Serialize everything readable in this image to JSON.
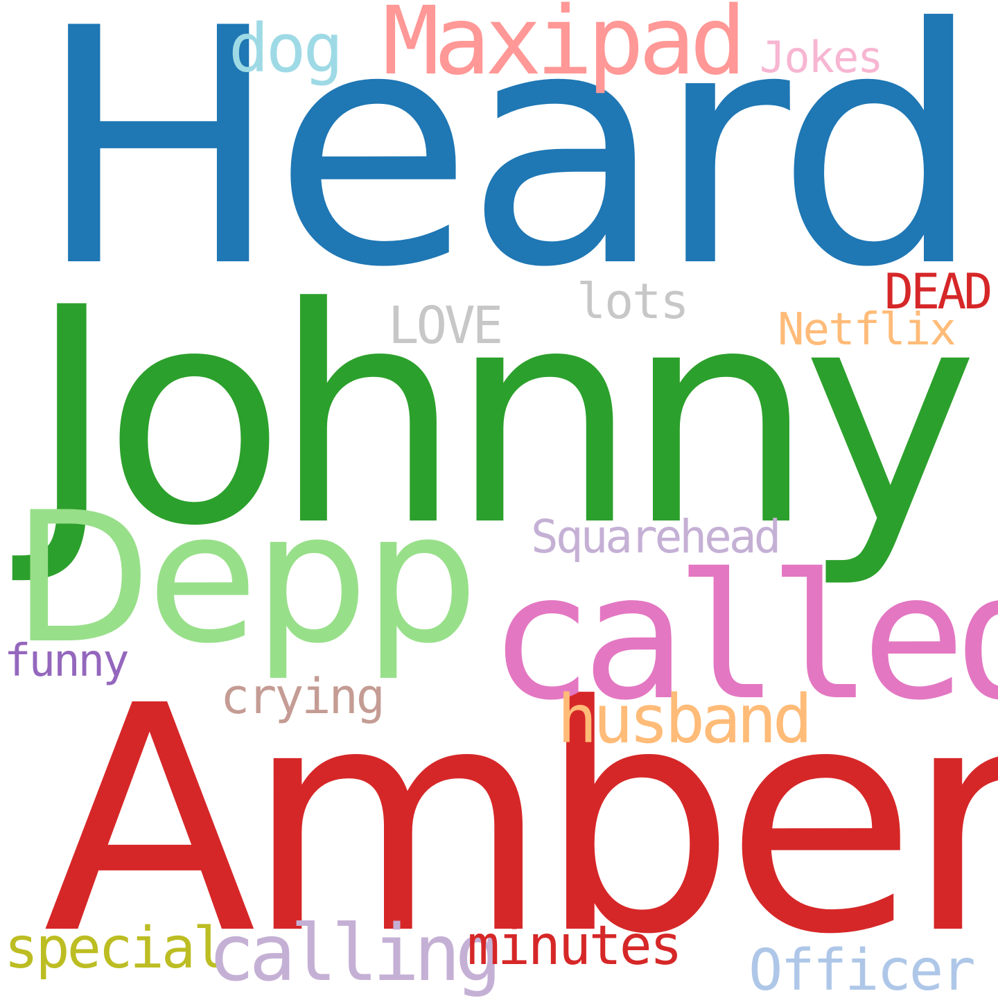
{
  "words": {
    "heard": {
      "text": "Heard",
      "color": "#1f77b4"
    },
    "johnny": {
      "text": "Johnny",
      "color": "#2ca02c"
    },
    "amber": {
      "text": "Amber",
      "color": "#d62728"
    },
    "depp": {
      "text": "Depp",
      "color": "#98df8a"
    },
    "called": {
      "text": "called",
      "color": "#e377c2"
    },
    "maxipad": {
      "text": "Maxipad",
      "color": "#ff9896"
    },
    "dog": {
      "text": "dog",
      "color": "#9edae5"
    },
    "jokes": {
      "text": "Jokes",
      "color": "#f7b6d2"
    },
    "lots": {
      "text": "lots",
      "color": "#c7c7c7"
    },
    "love": {
      "text": "LOVE",
      "color": "#c7c7c7"
    },
    "dead": {
      "text": "DEAD",
      "color": "#d62728"
    },
    "netflix": {
      "text": "Netflix",
      "color": "#ffbb78"
    },
    "squarehead": {
      "text": "Squarehead",
      "color": "#c5b0d5"
    },
    "funny": {
      "text": "funny",
      "color": "#9467bd"
    },
    "crying": {
      "text": "crying",
      "color": "#c49c94"
    },
    "husband": {
      "text": "husband",
      "color": "#ffbb78"
    },
    "special": {
      "text": "special",
      "color": "#bcbd22"
    },
    "calling": {
      "text": "calling",
      "color": "#c5b0d5"
    },
    "minutes": {
      "text": "minutes",
      "color": "#d62728"
    },
    "officer": {
      "text": "Officer",
      "color": "#aec7e8"
    }
  }
}
